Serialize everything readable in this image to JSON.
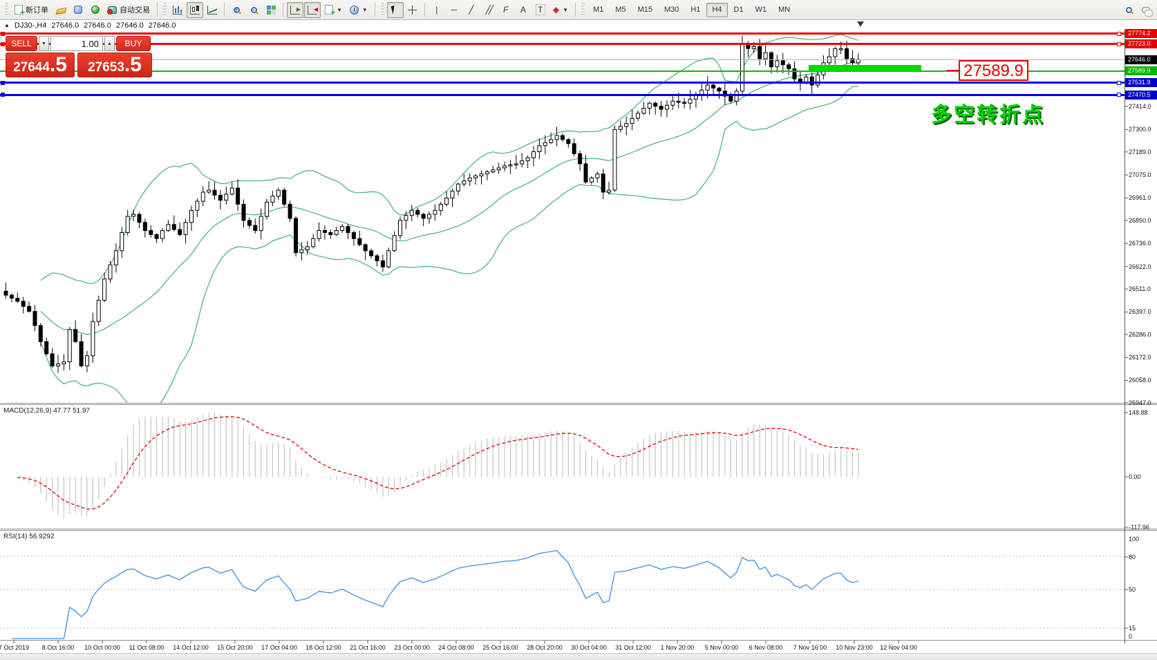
{
  "toolbar": {
    "new_order_label": "新订单",
    "autotrading_label": "自动交易",
    "timeframes": [
      "M1",
      "M5",
      "M15",
      "M30",
      "H1",
      "H4",
      "D1",
      "W1",
      "MN"
    ],
    "active_timeframe": "H4",
    "text_tool_label": "A",
    "label_tool_label": "T",
    "vline_glyph": "|",
    "hline_glyph": "─",
    "trendline_glyph": "╱",
    "channel_glyph": "╱╱",
    "fibo_glyph": "F"
  },
  "chart_header": {
    "symbol_period": "DJ30-,H4",
    "open": "27646.0",
    "high": "27646.0",
    "low": "27646.0",
    "close": "27646.0",
    "collapse_glyph": "▲"
  },
  "trade_panel": {
    "sell_label": "SELL",
    "buy_label": "BUY",
    "volume_value": "1.00",
    "spin_down_glyph": "▼",
    "spin_up_glyph": "▲",
    "sell_price": "27644",
    "sell_price_fraction": ".5",
    "buy_price": "27653",
    "buy_price_fraction": ".5"
  },
  "price_lines": [
    {
      "label": "27774.2",
      "value": 27774.2,
      "color": "#ee0000",
      "thickness": 3,
      "badge_color": "#e60000",
      "handles": true
    },
    {
      "label": "27723.0",
      "value": 27723.0,
      "color": "#ee0000",
      "thickness": 3,
      "badge_color": "#e60000",
      "handles": true
    },
    {
      "label": "27646.0",
      "value": 27646.0,
      "color": "#b4b4b4",
      "thickness": 1,
      "badge_color": "#000000",
      "handles": false
    },
    {
      "label": "27589.9",
      "value": 27589.9,
      "color": "#00c300",
      "thickness": 2,
      "badge_color": "#00b800",
      "handles": false
    },
    {
      "label": "27531.9",
      "value": 27531.9,
      "color": "#0000e6",
      "thickness": 3,
      "badge_color": "#0000cd",
      "handles": true
    },
    {
      "label": "27470.5",
      "value": 27470.5,
      "color": "#0000e6",
      "thickness": 3,
      "badge_color": "#0000cd",
      "handles": true
    }
  ],
  "annotations": {
    "price_callout": "27589.9",
    "turning_point": "多空转折点"
  },
  "macd_panel": {
    "label": "MACD(12,26,9)",
    "main_value": "47.77",
    "signal_value": "51.97",
    "axis_labels": [
      "148.88",
      "0.00",
      "-117.96"
    ]
  },
  "rsi_panel": {
    "label": "RSI(14)",
    "value": "56.9292",
    "axis_labels": [
      "100",
      "80",
      "50",
      "15",
      "0"
    ],
    "levels": [
      80,
      50,
      15
    ]
  },
  "price_axis_ticks": [
    27414.0,
    27300.0,
    27189.0,
    27075.0,
    26961.0,
    26850.0,
    26736.0,
    26622.0,
    26511.0,
    26397.0,
    26286.0,
    26172.0,
    26058.0,
    25947.0
  ],
  "time_axis": [
    "7 Oct 2019",
    "8 Oct 16:00",
    "10 Oct 00:00",
    "11 Oct 08:00",
    "14 Oct 12:00",
    "15 Oct 20:00",
    "17 Oct 04:00",
    "18 Oct 12:00",
    "21 Oct 16:00",
    "23 Oct 00:00",
    "24 Oct 08:00",
    "25 Oct 16:00",
    "28 Oct 20:00",
    "30 Oct 04:00",
    "31 Oct 12:00",
    "1 Nov 20:00",
    "5 Nov 00:00",
    "6 Nov 08:00",
    "7 Nov 16:00",
    "10 Nov 23:00",
    "12 Nov 04:00"
  ],
  "chart_data": {
    "type": "candlestick",
    "symbol": "DJ30-",
    "timeframe": "H4",
    "y_range": [
      25947,
      27794
    ],
    "closes": [
      26480,
      26465,
      26450,
      26425,
      26400,
      26330,
      26250,
      26190,
      26130,
      26140,
      26150,
      26310,
      26250,
      26130,
      26180,
      26350,
      26455,
      26560,
      26630,
      26700,
      26790,
      26870,
      26880,
      26840,
      26800,
      26780,
      26760,
      26800,
      26830,
      26805,
      26780,
      26840,
      26900,
      26945,
      26990,
      27000,
      26975,
      26950,
      26980,
      27010,
      26930,
      26850,
      26825,
      26800,
      26870,
      26940,
      26970,
      27000,
      26930,
      26860,
      26690,
      26705,
      26720,
      26760,
      26800,
      26790,
      26780,
      26800,
      26820,
      26790,
      26760,
      26730,
      26700,
      26675,
      26650,
      26620,
      26700,
      26775,
      26850,
      26875,
      26900,
      26880,
      26860,
      26880,
      26900,
      26930,
      26960,
      26995,
      27030,
      27045,
      27060,
      27070,
      27080,
      27090,
      27100,
      27110,
      27120,
      27125,
      27130,
      27145,
      27160,
      27190,
      27220,
      27235,
      27250,
      27270,
      27250,
      27230,
      27180,
      27130,
      27040,
      27060,
      27080,
      26990,
      27000,
      27300,
      27315,
      27330,
      27355,
      27380,
      27405,
      27430,
      27415,
      27400,
      27420,
      27440,
      27435,
      27430,
      27450,
      27470,
      27495,
      27520,
      27505,
      27490,
      27465,
      27440,
      27490,
      27720,
      27700,
      27710,
      27650,
      27680,
      27610,
      27640,
      27620,
      27600,
      27550,
      27530,
      27560,
      27520,
      27570,
      27630,
      27660,
      27700,
      27700,
      27650,
      27630,
      27646
    ],
    "indicators": {
      "bollinger": {
        "period": 20,
        "deviation": 2,
        "color": "#3cb371"
      },
      "macd": {
        "fast": 12,
        "slow": 26,
        "signal": 9,
        "histogram_color": "#c4c4c4",
        "signal_color": "#e60000"
      },
      "rsi": {
        "period": 14,
        "color": "#3b8fe0"
      }
    }
  }
}
